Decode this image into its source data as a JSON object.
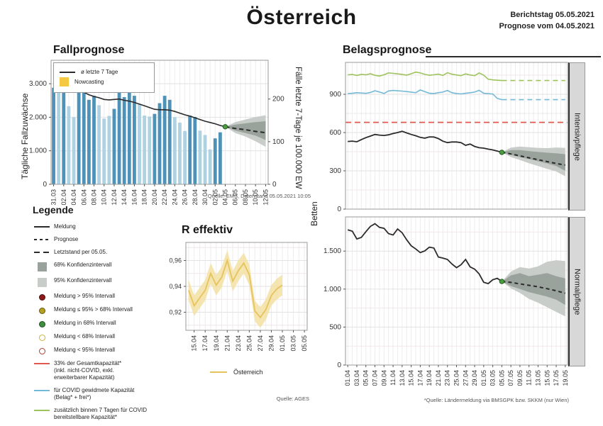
{
  "header": {
    "title": "Österreich",
    "report_day": "Berichtstag 05.05.2021",
    "prognosis_from": "Prognose vom 04.05.2021"
  },
  "fallprognose": {
    "title": "Fallprognose",
    "ylabel_left": "Tägliche Fallzuwächse",
    "ylabel_right": "Fälle letzte 7-Tage je 100.000 EW",
    "legend_line_label": "ø letzte 7 Tage",
    "legend_nowcasting_label": "Nowcasting",
    "source": "Quelle: EMS, Datenstand 05.05.2021 10:05"
  },
  "legende": {
    "title": "Legende",
    "items": [
      {
        "type": "line",
        "color": "line_black",
        "label": "Meldung"
      },
      {
        "type": "dash",
        "color": "line_black",
        "label": "Prognose"
      },
      {
        "type": "longdash",
        "color": "line_black",
        "label": "Letztstand per 05.05."
      },
      {
        "type": "square",
        "color": "band68",
        "label": "68% Konfidenzintervall"
      },
      {
        "type": "square",
        "color": "band95",
        "label": "95% Konfidenzintervall"
      },
      {
        "type": "dot",
        "color": "legend_dark_red",
        "label": "Meldung > 95% Intervall"
      },
      {
        "type": "dot",
        "color": "legend_olive",
        "label": "Meldung ≤ 95% > 68% Intervall"
      },
      {
        "type": "dot",
        "color": "legend_green",
        "label": "Meldung in 68% Intervall"
      },
      {
        "type": "ring",
        "color": "legend_ring_yellow",
        "label": "Meldung < 68% Intervall"
      },
      {
        "type": "ring",
        "color": "legend_ring_red",
        "label": "Meldung < 95% Intervall"
      },
      {
        "type": "line",
        "color": "red",
        "label": "33% der Gesamtkapazität*\n(inkl. nicht-COVID, exkl.\nerweiterbarer Kapazität)"
      },
      {
        "type": "line",
        "color": "blue",
        "label": "für COVID gewidmete Kapazität\n(Belag* + frei*)"
      },
      {
        "type": "line",
        "color": "green",
        "label": "zusätzlich binnen 7 Tagen für COVID\nbereitstellbare Kapazität*"
      }
    ]
  },
  "r_effektiv": {
    "title": "R effektiv",
    "legend_label": "Österreich",
    "source": "Quelle: AGES"
  },
  "belagsprognose": {
    "title": "Belagsprognose",
    "ylabel": "Betten",
    "intensiv_label": "Intensivpflege",
    "normal_label": "Normalpflege",
    "footnote": "*Quelle: Ländermeldung via BMSGPK bzw. SKKM (nur Wien)"
  },
  "colors": {
    "bar_dark": "#4e92b8",
    "bar_light": "#aed2e2",
    "nowcasting": "#f5c842",
    "line_black": "#2b2b2b",
    "band68": "#9aa39b",
    "band95": "#c9cdc9",
    "red": "#e0584e",
    "blue": "#74b9d8",
    "green": "#9dc35c",
    "dot_green": "#4b9e3c",
    "r_line": "#e6c35c",
    "r_band": "#f2df9e",
    "legend_dark_red": "#8b1a1a",
    "legend_olive": "#b5a021",
    "legend_green": "#3e8e3e",
    "legend_ring_yellow": "#c9b43a",
    "legend_ring_red": "#b03a2e"
  },
  "chart_data": [
    {
      "id": "fallprognose",
      "type": "bar",
      "x_slots": 43,
      "bar_dates": [
        "31.03",
        "01.04",
        "02.04",
        "03.04",
        "04.04",
        "05.04",
        "06.04",
        "07.04",
        "08.04",
        "09.04",
        "10.04",
        "11.04",
        "12.04",
        "13.04",
        "14.04",
        "15.04",
        "16.04",
        "17.04",
        "18.04",
        "19.04",
        "20.04",
        "21.04",
        "22.04",
        "23.04",
        "24.04",
        "25.04",
        "26.04",
        "27.04",
        "28.04",
        "29.04",
        "30.04",
        "01.05",
        "02.05",
        "03.05"
      ],
      "bar_values": [
        2880,
        2830,
        2880,
        2330,
        2000,
        2890,
        2850,
        2520,
        2640,
        2360,
        1960,
        2040,
        2250,
        2890,
        2600,
        2760,
        2640,
        2400,
        2050,
        2020,
        2100,
        2420,
        2640,
        2520,
        2000,
        1840,
        1590,
        2050,
        2010,
        1600,
        1470,
        1040,
        1370,
        1550
      ],
      "bar_dark": [
        1,
        0,
        1,
        0,
        0,
        1,
        1,
        1,
        1,
        0,
        0,
        0,
        1,
        1,
        1,
        1,
        1,
        0,
        0,
        0,
        1,
        1,
        1,
        1,
        0,
        0,
        0,
        1,
        1,
        0,
        0,
        0,
        1,
        1
      ],
      "ylim_left": [
        0,
        3700
      ],
      "yticks_left": [
        [
          "0",
          0
        ],
        [
          "1.000",
          1000
        ],
        [
          "2.000",
          2000
        ],
        [
          "3.000",
          3000
        ]
      ],
      "ylim_right": [
        0,
        291
      ],
      "yticks_right": [
        [
          "0",
          0
        ],
        [
          "100",
          100
        ],
        [
          "200",
          200
        ]
      ],
      "xtick_labels": [
        "31.03",
        "02.04",
        "04.04",
        "06.04",
        "08.04",
        "10.04",
        "12.04",
        "14.04",
        "16.04",
        "18.04",
        "20.04",
        "22.04",
        "24.04",
        "26.04",
        "28.04",
        "30.04",
        "02.05",
        "04.05",
        "06.05",
        "08.05",
        "10.05",
        "12.05"
      ],
      "xtick_start": 0,
      "xtick_step": 2,
      "incidence": [
        220,
        222,
        224,
        223,
        220,
        218,
        216,
        210,
        206,
        203,
        199,
        198,
        199,
        200,
        197,
        195,
        192,
        188,
        184,
        180,
        176,
        175,
        175,
        174,
        171,
        167,
        163,
        160,
        156,
        152,
        148,
        145,
        142,
        138,
        135
      ],
      "prognosis_x": [
        34,
        36,
        38,
        40,
        42
      ],
      "prognosis_y": [
        135,
        131,
        128,
        124,
        121
      ],
      "band95_lo": [
        135,
        120,
        112,
        101,
        88
      ],
      "band95_hi": [
        135,
        146,
        152,
        158,
        162
      ],
      "band68_lo": [
        135,
        126,
        120,
        114,
        104
      ],
      "band68_hi": [
        135,
        140,
        143,
        146,
        148
      ],
      "dot": [
        34,
        135
      ]
    },
    {
      "id": "r_effektiv",
      "type": "line",
      "x_slots": 22,
      "ylim": [
        0.906,
        0.974
      ],
      "yticks": [
        [
          "0,92",
          0.92
        ],
        [
          "0,94",
          0.94
        ],
        [
          "0,96",
          0.96
        ]
      ],
      "grid_minor": [
        0.91,
        0.93,
        0.95,
        0.97
      ],
      "xtick_labels": [
        "15.04",
        "17.04",
        "19.04",
        "21.04",
        "23.04",
        "25.04",
        "27.04",
        "29.04",
        "01.05",
        "03.05",
        "05.05"
      ],
      "xtick_start": 1,
      "xtick_step": 2,
      "values": [
        0.937,
        0.925,
        0.931,
        0.937,
        0.95,
        0.941,
        0.947,
        0.96,
        0.944,
        0.952,
        0.958,
        0.949,
        0.921,
        0.916,
        0.922,
        0.933,
        0.938,
        0.941
      ],
      "band_halfwidth": 0.008
    },
    {
      "id": "belag_intensiv",
      "type": "line",
      "x_slots": 49,
      "ylim": [
        0,
        1150
      ],
      "yticks": [
        [
          "0",
          0
        ],
        [
          "300",
          300
        ],
        [
          "600",
          600
        ],
        [
          "900",
          900
        ]
      ],
      "grid_minor": [
        150,
        450,
        750,
        1050
      ],
      "occupied_solid": [
        530,
        533,
        528,
        545,
        560,
        572,
        585,
        580,
        577,
        582,
        592,
        600,
        610,
        597,
        585,
        575,
        562,
        556,
        566,
        565,
        553,
        532,
        521,
        526,
        526,
        521,
        500,
        510,
        491,
        481,
        478,
        470,
        464,
        455,
        445
      ],
      "prognosis_x": [
        34,
        36,
        38,
        40,
        42,
        44,
        46,
        48
      ],
      "prognosis_y": [
        445,
        432,
        417,
        402,
        387,
        372,
        358,
        345
      ],
      "band95_lo": [
        445,
        408,
        385,
        360,
        338,
        315,
        295,
        258
      ],
      "band95_hi": [
        445,
        482,
        490,
        485,
        480,
        478,
        483,
        480
      ],
      "band68_lo": [
        445,
        425,
        408,
        392,
        375,
        358,
        338,
        300
      ],
      "band68_hi": [
        445,
        462,
        462,
        455,
        448,
        442,
        438,
        430
      ],
      "dot": [
        34,
        445
      ],
      "capacity_33": 680,
      "dedicated_solid": [
        905,
        908,
        912,
        910,
        907,
        914,
        928,
        918,
        906,
        926,
        930,
        927,
        925,
        921,
        917,
        912,
        934,
        921,
        908,
        906,
        912,
        917,
        930,
        912,
        906,
        903,
        908,
        912,
        917,
        931,
        908,
        905,
        902,
        868,
        858
      ],
      "dedicated_dashed": 858,
      "additional_solid": [
        1052,
        1055,
        1048,
        1056,
        1052,
        1061,
        1049,
        1043,
        1053,
        1068,
        1064,
        1060,
        1056,
        1050,
        1061,
        1074,
        1067,
        1056,
        1049,
        1053,
        1058,
        1048,
        1069,
        1057,
        1051,
        1046,
        1060,
        1051,
        1046,
        1067,
        1050,
        1018,
        1013,
        1010,
        1008
      ],
      "additional_dashed": 1008
    },
    {
      "id": "belag_normal",
      "type": "line",
      "x_slots": 49,
      "ylim": [
        0,
        1950
      ],
      "yticks": [
        [
          "0",
          0
        ],
        [
          "500",
          500
        ],
        [
          "1.000",
          1000
        ],
        [
          "1.500",
          1500
        ]
      ],
      "grid_minor": [
        250,
        750,
        1250,
        1750
      ],
      "occupied_solid": [
        1780,
        1762,
        1660,
        1680,
        1755,
        1825,
        1860,
        1812,
        1800,
        1730,
        1712,
        1790,
        1742,
        1650,
        1570,
        1528,
        1480,
        1502,
        1552,
        1540,
        1422,
        1408,
        1390,
        1330,
        1282,
        1320,
        1390,
        1292,
        1262,
        1200,
        1090,
        1072,
        1122,
        1142,
        1100
      ],
      "prognosis_x": [
        34,
        36,
        38,
        40,
        42,
        44,
        46,
        48
      ],
      "prognosis_y": [
        1100,
        1088,
        1068,
        1050,
        1030,
        1005,
        978,
        945
      ],
      "band95_lo": [
        1100,
        1010,
        950,
        870,
        820,
        760,
        700,
        640
      ],
      "band95_hi": [
        1100,
        1230,
        1290,
        1270,
        1300,
        1360,
        1380,
        1370
      ],
      "band68_lo": [
        1100,
        1040,
        1000,
        960,
        930,
        900,
        860,
        790
      ],
      "band68_hi": [
        1100,
        1180,
        1210,
        1170,
        1190,
        1210,
        1170,
        1140
      ],
      "dot": [
        34,
        1100
      ],
      "xtick_labels": [
        "01.04",
        "03.04",
        "05.04",
        "07.04",
        "09.04",
        "11.04",
        "13.04",
        "15.04",
        "17.04",
        "19.04",
        "21.04",
        "23.04",
        "25.04",
        "27.04",
        "29.04",
        "01.05",
        "03.05",
        "05.05",
        "07.05",
        "09.05",
        "11.05",
        "13.05",
        "15.05",
        "17.05",
        "19.05"
      ],
      "xtick_start": 0,
      "xtick_step": 2
    }
  ]
}
